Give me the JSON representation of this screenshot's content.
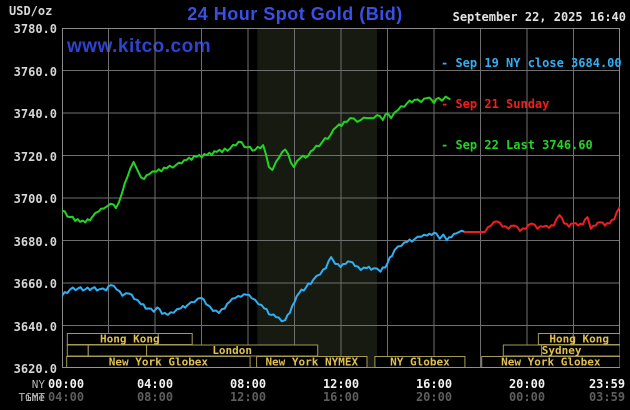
{
  "header": {
    "usd_oz": "USD/oz",
    "title": "24 Hour Spot Gold (Bid)",
    "datetime": "September 22, 2025 16:40",
    "watermark": "www.kitco.com"
  },
  "legend": [
    {
      "text": "- Sep 19 NY close 3684.00",
      "color": "#2fb0f4"
    },
    {
      "text": "- Sep 21 Sunday",
      "color": "#f21d1d"
    },
    {
      "text": "- Sep 22 Last 3746.60",
      "color": "#23d423"
    }
  ],
  "colors": {
    "background": "#000000",
    "grid": "#6f6f6f",
    "plot_border": "#8a8a8a",
    "band": "#161a10",
    "title_blue": "#3950e6",
    "watermark_blue": "#2d44cf",
    "date_text": "#e2e2e2",
    "session_border": "#a59a52",
    "session_fill": "#000000",
    "session_text": "#dfc050",
    "y_tick_text": "#d6d6d6",
    "ny_tick_text": "#f2f2f2",
    "gmt_tick_text": "#5e5e5e",
    "axis_row_label": "#b8b8b8"
  },
  "chart_data": {
    "type": "line",
    "title": "24 Hour Spot Gold (Bid)",
    "ylabel": "USD/oz",
    "ylim": [
      3620,
      3780
    ],
    "xlim_hours": [
      0,
      24
    ],
    "yticks": [
      3780,
      3760,
      3740,
      3720,
      3700,
      3680,
      3660,
      3640,
      3620
    ],
    "grid_hours_step": 2,
    "nymex_band_hours": [
      8.4,
      13.55
    ],
    "x_axis": {
      "ny_label": "NY Time",
      "gmt_label": "GMT",
      "ny_ticks": [
        [
          "00:00",
          0
        ],
        [
          "04:00",
          4
        ],
        [
          "08:00",
          8
        ],
        [
          "12:00",
          12
        ],
        [
          "16:00",
          16
        ],
        [
          "20:00",
          20
        ],
        [
          "23:59",
          23.983
        ]
      ],
      "gmt_ticks": [
        [
          "04:00",
          0
        ],
        [
          "08:00",
          4
        ],
        [
          "12:00",
          8
        ],
        [
          "16:00",
          12
        ],
        [
          "20:00",
          16
        ],
        [
          "00:00",
          20
        ],
        [
          "03:59",
          23.983
        ]
      ]
    },
    "series": [
      {
        "id": "sep19",
        "name": "Sep 19 NY close 3684.00",
        "color": "#2fb0f4",
        "points": [
          [
            0,
            3654
          ],
          [
            0.35,
            3657
          ],
          [
            0.7,
            3657.5
          ],
          [
            1,
            3657
          ],
          [
            1.3,
            3657.5
          ],
          [
            1.6,
            3657
          ],
          [
            1.9,
            3656.5
          ],
          [
            2.1,
            3659
          ],
          [
            2.35,
            3657
          ],
          [
            2.6,
            3654
          ],
          [
            2.9,
            3655
          ],
          [
            3.1,
            3652.5
          ],
          [
            3.4,
            3650
          ],
          [
            3.7,
            3648
          ],
          [
            3.95,
            3646.5
          ],
          [
            4.1,
            3648.5
          ],
          [
            4.3,
            3645.5
          ],
          [
            4.55,
            3645
          ],
          [
            4.8,
            3646
          ],
          [
            5.1,
            3648
          ],
          [
            5.4,
            3649.6
          ],
          [
            5.7,
            3651
          ],
          [
            6,
            3653
          ],
          [
            6.2,
            3650
          ],
          [
            6.5,
            3646.8
          ],
          [
            6.75,
            3645.9
          ],
          [
            7,
            3648
          ],
          [
            7.2,
            3651
          ],
          [
            7.45,
            3652.9
          ],
          [
            7.7,
            3653.5
          ],
          [
            7.95,
            3654.5
          ],
          [
            8.15,
            3652.9
          ],
          [
            8.45,
            3650
          ],
          [
            8.7,
            3648
          ],
          [
            9,
            3645
          ],
          [
            9.2,
            3644
          ],
          [
            9.45,
            3642
          ],
          [
            9.6,
            3642.5
          ],
          [
            9.8,
            3646
          ],
          [
            10,
            3651
          ],
          [
            10.2,
            3655.3
          ],
          [
            10.5,
            3658
          ],
          [
            10.8,
            3661.4
          ],
          [
            11.1,
            3664
          ],
          [
            11.35,
            3667
          ],
          [
            11.58,
            3672.2
          ],
          [
            11.75,
            3669
          ],
          [
            11.98,
            3667.5
          ],
          [
            12.2,
            3669
          ],
          [
            12.4,
            3670
          ],
          [
            12.6,
            3668
          ],
          [
            12.85,
            3666.1
          ],
          [
            13.1,
            3667
          ],
          [
            13.4,
            3666.9
          ],
          [
            13.7,
            3665.3
          ],
          [
            14,
            3669.3
          ],
          [
            14.3,
            3675.5
          ],
          [
            14.6,
            3677.5
          ],
          [
            14.85,
            3679.4
          ],
          [
            15.15,
            3680.5
          ],
          [
            15.45,
            3681.8
          ],
          [
            15.7,
            3682.3
          ],
          [
            15.9,
            3682.6
          ],
          [
            16.1,
            3683.3
          ],
          [
            16.25,
            3680.8
          ],
          [
            16.4,
            3682.8
          ],
          [
            16.55,
            3680.2
          ],
          [
            16.75,
            3681.5
          ],
          [
            16.95,
            3683.3
          ],
          [
            17.05,
            3683.8
          ],
          [
            17.33,
            3684
          ]
        ]
      },
      {
        "id": "sep21",
        "name": "Sep 21 Sunday",
        "color": "#f21d1d",
        "points": [
          [
            17.33,
            3684
          ],
          [
            18.19,
            3684
          ],
          [
            18.45,
            3687
          ],
          [
            18.7,
            3689
          ],
          [
            18.95,
            3686.5
          ],
          [
            19.2,
            3685.5
          ],
          [
            19.45,
            3687
          ],
          [
            19.7,
            3684.5
          ],
          [
            19.95,
            3685.5
          ],
          [
            20.2,
            3688
          ],
          [
            20.45,
            3685.5
          ],
          [
            20.7,
            3686.5
          ],
          [
            20.95,
            3686
          ],
          [
            21.15,
            3687
          ],
          [
            21.4,
            3692
          ],
          [
            21.6,
            3688
          ],
          [
            21.8,
            3686.5
          ],
          [
            22,
            3688
          ],
          [
            22.2,
            3687
          ],
          [
            22.4,
            3687.5
          ],
          [
            22.6,
            3691
          ],
          [
            22.75,
            3685.5
          ],
          [
            22.95,
            3687
          ],
          [
            23.15,
            3688.5
          ],
          [
            23.35,
            3687
          ],
          [
            23.55,
            3688
          ],
          [
            23.75,
            3690
          ],
          [
            23.98,
            3695.5
          ]
        ]
      },
      {
        "id": "sep22",
        "name": "Sep 22 Last 3746.60",
        "color": "#23d423",
        "points": [
          [
            0,
            3694
          ],
          [
            0.35,
            3691
          ],
          [
            0.78,
            3688.8
          ],
          [
            1,
            3688.5
          ],
          [
            1.3,
            3691
          ],
          [
            1.57,
            3693.6
          ],
          [
            1.79,
            3695
          ],
          [
            1.96,
            3696.3
          ],
          [
            2.22,
            3696.9
          ],
          [
            2.32,
            3695.2
          ],
          [
            2.45,
            3698
          ],
          [
            2.6,
            3703
          ],
          [
            2.8,
            3709.5
          ],
          [
            3.08,
            3717
          ],
          [
            3.25,
            3713
          ],
          [
            3.4,
            3709.7
          ],
          [
            3.53,
            3708.9
          ],
          [
            3.75,
            3711.2
          ],
          [
            4.05,
            3712.4
          ],
          [
            4.5,
            3714
          ],
          [
            4.9,
            3715.5
          ],
          [
            5.14,
            3716.3
          ],
          [
            5.36,
            3717.9
          ],
          [
            5.79,
            3719.4
          ],
          [
            6.23,
            3720.2
          ],
          [
            6.66,
            3721.7
          ],
          [
            7.23,
            3723.2
          ],
          [
            7.6,
            3726.5
          ],
          [
            7.97,
            3723.8
          ],
          [
            8.3,
            3722.6
          ],
          [
            8.65,
            3724.9
          ],
          [
            8.9,
            3714.6
          ],
          [
            9.05,
            3713.2
          ],
          [
            9.35,
            3719.3
          ],
          [
            9.6,
            3722.8
          ],
          [
            9.97,
            3714.6
          ],
          [
            10.25,
            3718.8
          ],
          [
            10.6,
            3720
          ],
          [
            10.8,
            3722.6
          ],
          [
            11.2,
            3726.4
          ],
          [
            11.55,
            3729.6
          ],
          [
            11.8,
            3733.4
          ],
          [
            12.25,
            3735.8
          ],
          [
            12.4,
            3737.6
          ],
          [
            12.7,
            3735.8
          ],
          [
            12.85,
            3736.7
          ],
          [
            13.1,
            3737.6
          ],
          [
            13.4,
            3737.6
          ],
          [
            13.55,
            3739
          ],
          [
            13.8,
            3736.7
          ],
          [
            14,
            3740
          ],
          [
            14.15,
            3737.6
          ],
          [
            14.45,
            3741.4
          ],
          [
            14.85,
            3744.7
          ],
          [
            15.15,
            3746.1
          ],
          [
            15.45,
            3745.2
          ],
          [
            15.7,
            3747
          ],
          [
            15.9,
            3746.1
          ],
          [
            16,
            3744.7
          ],
          [
            16.2,
            3747.1
          ],
          [
            16.35,
            3745.8
          ],
          [
            16.5,
            3747.7
          ],
          [
            16.67,
            3746.6
          ]
        ]
      }
    ],
    "sessions": [
      {
        "row": 0,
        "start": 0.23,
        "end": 5.6,
        "label": "Hong Kong",
        "dividers": [
          4.14
        ]
      },
      {
        "row": 0,
        "start": 20.49,
        "end": 24,
        "label": "Hong Kong",
        "dividers": [
          21.99
        ]
      },
      {
        "row": 1,
        "start": 0.23,
        "end": 1.13,
        "label": "",
        "dividers": []
      },
      {
        "row": 1,
        "start": 1.13,
        "end": 3.64,
        "label": "",
        "dividers": []
      },
      {
        "row": 1,
        "start": 3.64,
        "end": 11.0,
        "label": "London",
        "dividers": []
      },
      {
        "row": 1,
        "start": 18.98,
        "end": 24,
        "label": "Sydney",
        "dividers": [
          20.63
        ]
      },
      {
        "row": 2,
        "start": 0.2,
        "end": 8.09,
        "label": "New York Globex",
        "dividers": []
      },
      {
        "row": 2,
        "start": 8.37,
        "end": 13.12,
        "label": "New York NYMEX",
        "dividers": []
      },
      {
        "row": 2,
        "start": 13.46,
        "end": 17.33,
        "label": "NY Globex",
        "dividers": []
      },
      {
        "row": 2,
        "start": 18.05,
        "end": 24,
        "label": "New York Globex",
        "dividers": []
      }
    ]
  }
}
